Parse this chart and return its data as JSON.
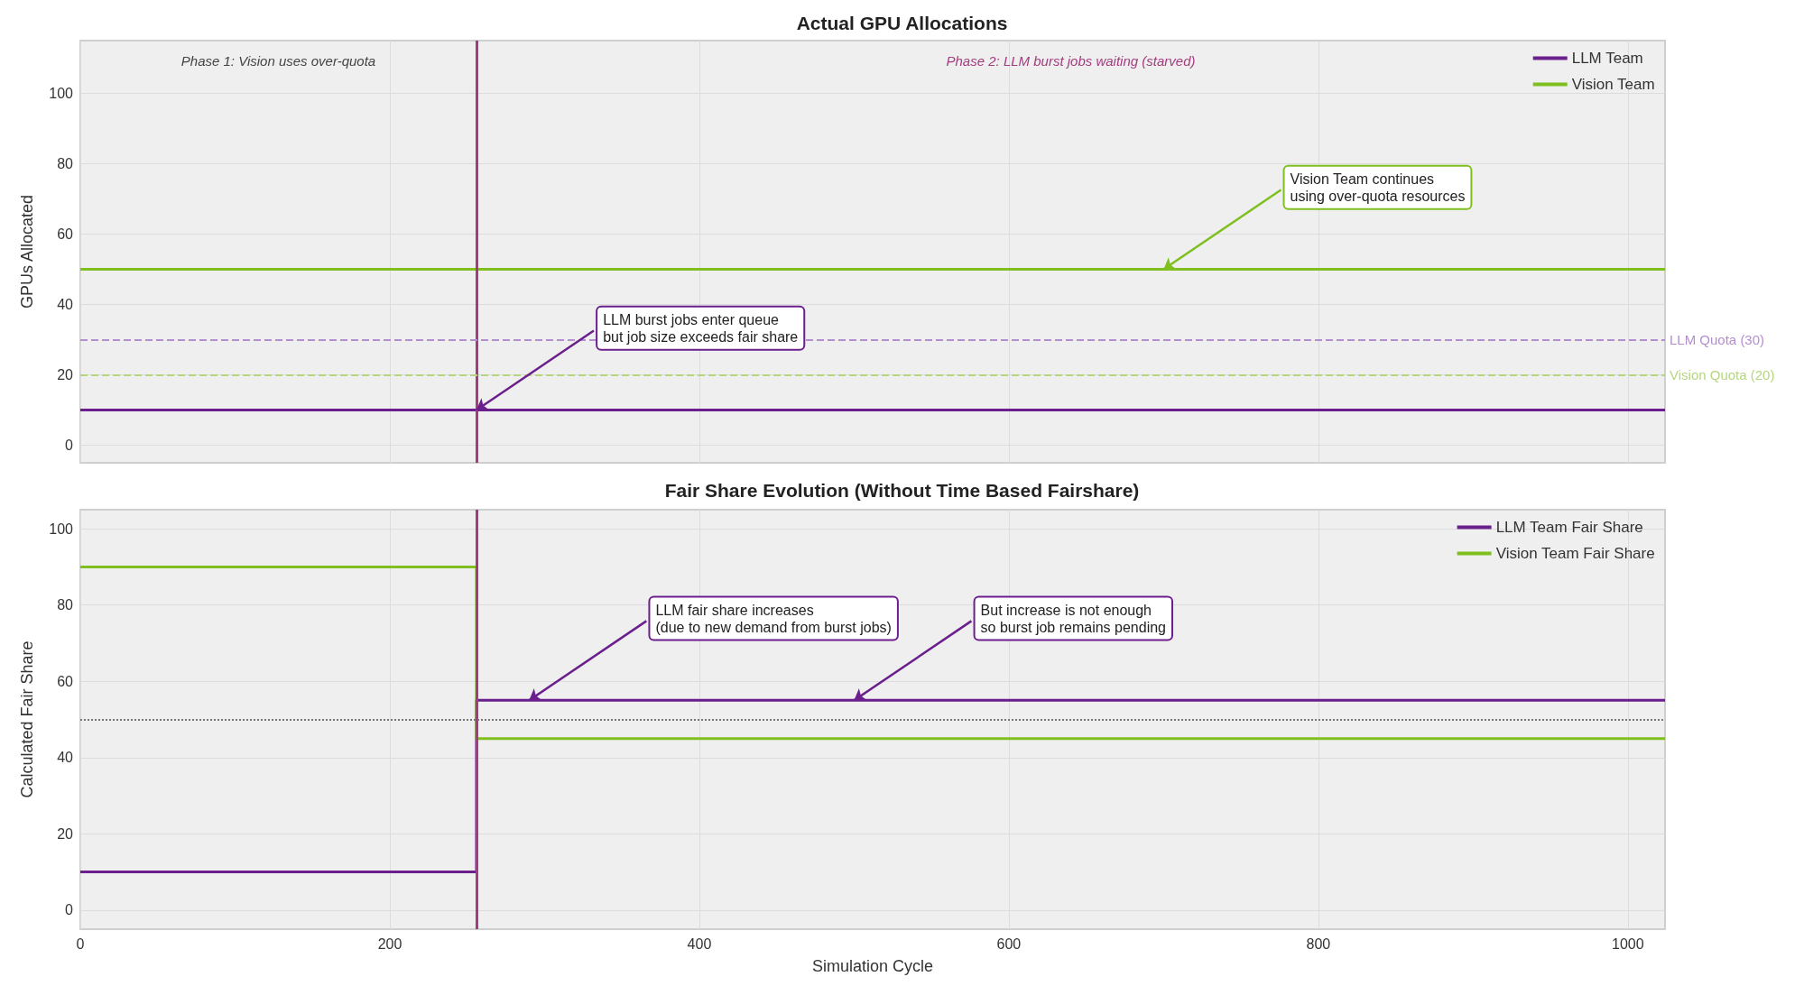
{
  "chart_data": [
    {
      "type": "line",
      "title": "Actual GPU Allocations",
      "ylabel": "GPUs Allocated",
      "xlim": [
        0,
        1024
      ],
      "xticks": [
        0,
        200,
        400,
        600,
        800,
        1000
      ],
      "ylim": [
        -5,
        115
      ],
      "yticks": [
        0,
        20,
        40,
        60,
        80,
        100
      ],
      "tick_labels": "y",
      "grid": true,
      "legend": "top right",
      "marker": "none",
      "x": [
        0,
        1024
      ],
      "series": [
        {
          "name": "LLM Team",
          "color": "#6a1f8c",
          "values": [
            10,
            10
          ]
        },
        {
          "name": "Vision Team",
          "color": "#7fbf1f",
          "values": [
            50,
            50
          ]
        }
      ],
      "ref_lines": [
        {
          "axis": "x",
          "value": 256,
          "color": "#a33b7f"
        },
        {
          "axis": "y",
          "value": 30,
          "label": "LLM Quota (30)",
          "color": "#b48fcf",
          "line_style": "dashed"
        },
        {
          "axis": "y",
          "value": 20,
          "label": "Vision Quota (20)",
          "color": "#b5d67e",
          "line_style": "dashed"
        }
      ],
      "annotations": [
        "Phase 1: Vision uses over-quota",
        "Phase 2: LLM burst jobs waiting (starved)",
        {
          "text": "LLM burst jobs enter queue\nbut job size exceeds fair share",
          "x": 256,
          "y": 10
        },
        {
          "text": "Vision Team continues\nusing over-quota resources",
          "x": 700,
          "y": 50
        }
      ]
    },
    {
      "type": "step",
      "title": "Fair Share Evolution (Without Time Based Fairshare)",
      "xlabel": "Simulation Cycle",
      "ylabel": "Calculated Fair Share",
      "xlim": [
        0,
        1024
      ],
      "xticks": [
        0,
        200,
        400,
        600,
        800,
        1000
      ],
      "ylim": [
        -5,
        105
      ],
      "yticks": [
        0,
        20,
        40,
        60,
        80,
        100
      ],
      "grid": true,
      "legend": "top right",
      "marker": "none",
      "x": [
        0,
        256,
        1024
      ],
      "series": [
        {
          "name": "LLM Team Fair Share",
          "color": "#6a1f8c",
          "values": [
            10,
            55,
            55
          ]
        },
        {
          "name": "Vision Team Fair Share",
          "color": "#7fbf1f",
          "values": [
            90,
            45,
            45
          ]
        }
      ],
      "ref_lines": [
        {
          "axis": "x",
          "value": 256,
          "color": "#a33b7f"
        },
        {
          "axis": "y",
          "value": 50,
          "color": "#777777",
          "line_style": "dotted"
        }
      ],
      "annotations": [
        {
          "text": "LLM fair share increases\n(due to new demand from burst jobs)",
          "x": 290,
          "y": 55
        },
        {
          "text": "But increase is not enough\nso burst job remains pending",
          "x": 500,
          "y": 55
        }
      ]
    }
  ]
}
